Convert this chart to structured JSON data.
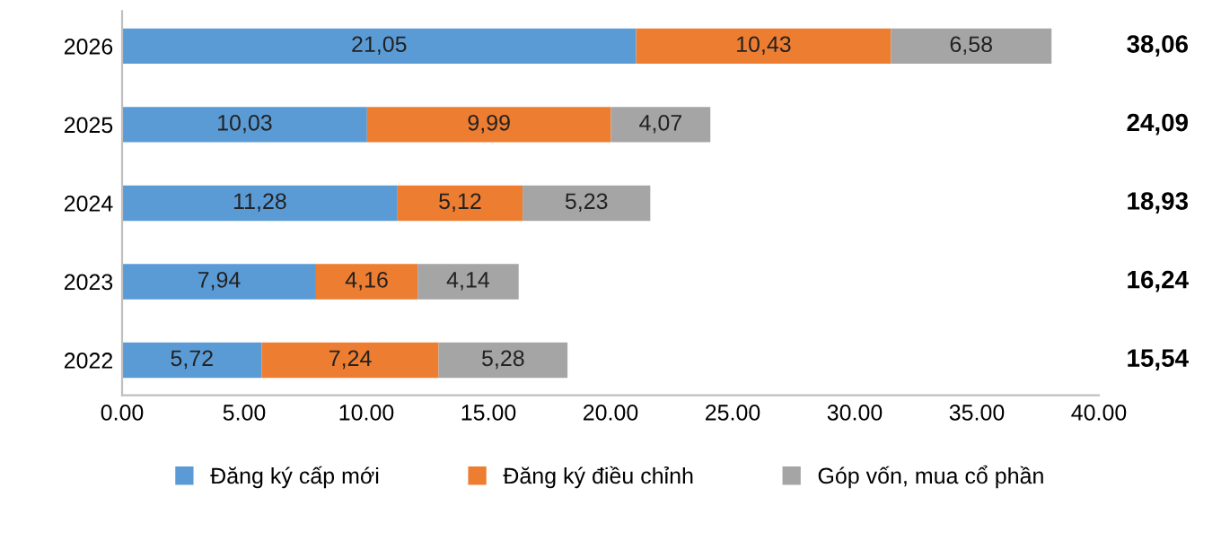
{
  "chart_data": {
    "type": "bar",
    "orientation": "horizontal",
    "stacked": true,
    "categories": [
      "2026",
      "2025",
      "2024",
      "2023",
      "2022"
    ],
    "series": [
      {
        "name": "Đăng ký cấp mới",
        "color": "#5b9bd5",
        "values": [
          21.05,
          10.03,
          11.28,
          7.94,
          5.72
        ],
        "value_labels": [
          "21,05",
          "10,03",
          "11,28",
          "7,94",
          "5,72"
        ]
      },
      {
        "name": "Đăng ký điều chỉnh",
        "color": "#ed7d31",
        "values": [
          10.43,
          9.99,
          5.12,
          4.16,
          7.24
        ],
        "value_labels": [
          "10,43",
          "9,99",
          "5,12",
          "4,16",
          "7,24"
        ]
      },
      {
        "name": "Góp vốn, mua cổ phần",
        "color": "#a5a5a5",
        "values": [
          6.58,
          4.07,
          5.23,
          4.14,
          5.28
        ],
        "value_labels": [
          "6,58",
          "4,07",
          "5,23",
          "4,14",
          "5,28"
        ]
      }
    ],
    "annotations": [
      "38,06",
      "24,09",
      "18,93",
      "16,24",
      "15,54"
    ],
    "xlim": [
      0,
      40
    ],
    "xticks": [
      {
        "value": 0,
        "label": "0.00"
      },
      {
        "value": 5,
        "label": "5.00"
      },
      {
        "value": 10,
        "label": "10.00"
      },
      {
        "value": 15,
        "label": "15.00"
      },
      {
        "value": 20,
        "label": "20.00"
      },
      {
        "value": 25,
        "label": "25.00"
      },
      {
        "value": 30,
        "label": "30.00"
      },
      {
        "value": 35,
        "label": "35.00"
      },
      {
        "value": 40,
        "label": "40.00"
      }
    ],
    "grid": false,
    "legend": "bottom"
  }
}
